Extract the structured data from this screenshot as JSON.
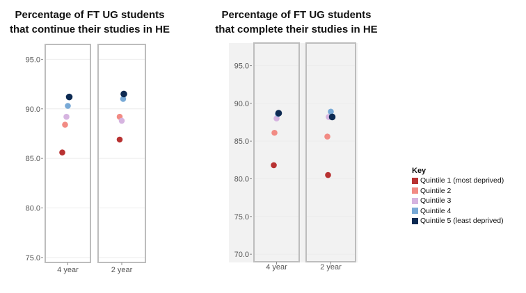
{
  "chart_data": [
    {
      "type": "scatter",
      "title": [
        "Percentage of FT UG students",
        "that continue their studies in HE"
      ],
      "categories": [
        "4 year",
        "2 year"
      ],
      "ylim": [
        74.5,
        96.5
      ],
      "yticks": [
        "75.0",
        "80.0",
        "85.0",
        "90.0",
        "95.0"
      ],
      "series": [
        {
          "name": "Quintile 1 (most deprived)",
          "values": [
            85.6,
            86.9
          ]
        },
        {
          "name": "Quintile 2",
          "values": [
            88.4,
            89.2
          ]
        },
        {
          "name": "Quintile 3",
          "values": [
            89.2,
            88.8
          ]
        },
        {
          "name": "Quintile 4",
          "values": [
            90.3,
            91.0
          ]
        },
        {
          "name": "Quintile 5 (least deprived)",
          "values": [
            91.2,
            91.5
          ]
        }
      ]
    },
    {
      "type": "scatter",
      "title": [
        "Percentage of FT UG students",
        "that complete their studies in HE"
      ],
      "categories": [
        "4 year",
        "2 year"
      ],
      "ylim": [
        69,
        98
      ],
      "yticks": [
        "70.0",
        "75.0",
        "80.0",
        "85.0",
        "90.0",
        "95.0"
      ],
      "series": [
        {
          "name": "Quintile 1 (most deprived)",
          "values": [
            81.8,
            80.5
          ]
        },
        {
          "name": "Quintile 2",
          "values": [
            86.1,
            85.6
          ]
        },
        {
          "name": "Quintile 3",
          "values": [
            88.0,
            88.2
          ]
        },
        {
          "name": "Quintile 4",
          "values": [
            88.6,
            88.9
          ]
        },
        {
          "name": "Quintile 5 (least deprived)",
          "values": [
            88.7,
            88.2
          ]
        }
      ]
    }
  ],
  "legend": {
    "title": "Key",
    "items": [
      {
        "label": "Quintile 1 (most deprived)",
        "color": "#b83232"
      },
      {
        "label": "Quintile 2",
        "color": "#f28b84"
      },
      {
        "label": "Quintile 3",
        "color": "#d6b4e0"
      },
      {
        "label": "Quintile 4",
        "color": "#78a9d6"
      },
      {
        "label": "Quintile 5 (least deprived)",
        "color": "#0d2a52"
      }
    ]
  }
}
